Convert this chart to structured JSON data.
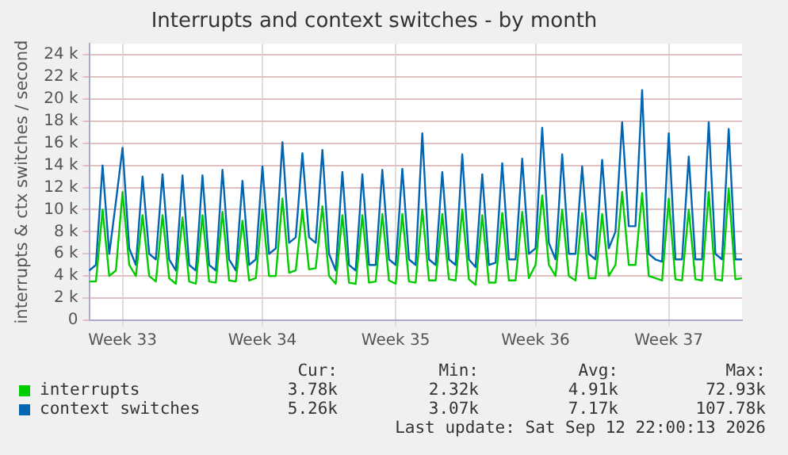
{
  "chart_data": {
    "type": "line",
    "title": "Interrupts and context switches - by month",
    "ylabel": "interrupts & ctx switches / second",
    "categories": [
      null,
      null,
      null,
      null,
      null,
      "Week 33",
      null,
      null,
      null,
      null,
      null,
      null,
      null,
      null,
      null,
      null,
      null,
      null,
      null,
      null,
      null,
      null,
      null,
      null,
      null,
      null,
      "Week 34",
      null,
      null,
      null,
      null,
      null,
      null,
      null,
      null,
      null,
      null,
      null,
      null,
      null,
      null,
      null,
      null,
      null,
      null,
      null,
      "Week 35",
      null,
      null,
      null,
      null,
      null,
      null,
      null,
      null,
      null,
      null,
      null,
      null,
      null,
      null,
      null,
      null,
      null,
      null,
      null,
      null,
      "Week 36",
      null,
      null,
      null,
      null,
      null,
      null,
      null,
      null,
      null,
      null,
      null,
      null,
      null,
      null,
      null,
      null,
      null,
      null,
      null,
      "Week 37",
      null,
      null,
      null,
      null,
      null,
      null,
      null,
      null,
      null,
      null,
      null
    ],
    "series": [
      {
        "name": "interrupts",
        "color": "#00cc00",
        "values": [
          3500,
          3500,
          10000,
          4000,
          4500,
          11600,
          5000,
          4000,
          9500,
          4000,
          3500,
          9500,
          3800,
          3300,
          9300,
          3500,
          3300,
          9500,
          3500,
          3400,
          9800,
          3600,
          3500,
          9000,
          3600,
          3800,
          10000,
          4000,
          4000,
          11000,
          4300,
          4500,
          10000,
          4600,
          4700,
          10300,
          4000,
          3300,
          9500,
          3400,
          3300,
          9500,
          3400,
          3500,
          9600,
          3600,
          3300,
          9600,
          3500,
          3400,
          10000,
          3600,
          3600,
          9600,
          3700,
          3600,
          10000,
          3700,
          3200,
          9500,
          3400,
          3400,
          9700,
          3600,
          3600,
          9800,
          3800,
          5000,
          11300,
          5000,
          4000,
          10000,
          4000,
          3600,
          9700,
          3800,
          3800,
          9600,
          4000,
          5000,
          11600,
          5000,
          5000,
          11500,
          4000,
          3800,
          3600,
          11000,
          3700,
          3600,
          10000,
          3700,
          3600,
          11600,
          3700,
          3600,
          11900,
          3700,
          3800
        ]
      },
      {
        "name": "context switches",
        "color": "#0066b3",
        "values": [
          4500,
          5000,
          14000,
          6000,
          10700,
          15600,
          6500,
          5000,
          13000,
          6000,
          5500,
          13200,
          5500,
          4500,
          13100,
          5000,
          4500,
          13100,
          5000,
          4500,
          13600,
          5500,
          4500,
          12600,
          5000,
          5500,
          13900,
          6000,
          6500,
          16100,
          7000,
          7500,
          15100,
          7500,
          7000,
          15400,
          6000,
          4500,
          13400,
          5000,
          4500,
          13200,
          5000,
          5000,
          13600,
          5500,
          5000,
          13700,
          5500,
          5000,
          16900,
          5500,
          5000,
          13400,
          5500,
          5000,
          15000,
          5500,
          4800,
          13200,
          5000,
          5200,
          14200,
          5500,
          5500,
          14600,
          6000,
          6500,
          17400,
          7000,
          5500,
          15000,
          6000,
          6000,
          13900,
          6000,
          5500,
          14500,
          6500,
          8000,
          17900,
          8500,
          8500,
          20800,
          6000,
          5500,
          5300,
          16900,
          5500,
          5500,
          14800,
          5500,
          5500,
          17900,
          6000,
          5500,
          17300,
          5500,
          5500
        ]
      }
    ],
    "ylim": [
      0,
      25000
    ],
    "yticks": [
      0,
      {
        "value": 2000,
        "label": "2 k"
      },
      {
        "value": 4000,
        "label": "4 k"
      },
      {
        "value": 6000,
        "label": "6 k"
      },
      {
        "value": 8000,
        "label": "8 k"
      },
      {
        "value": 10000,
        "label": "10 k"
      },
      {
        "value": 12000,
        "label": "12 k"
      },
      {
        "value": 14000,
        "label": "14 k"
      },
      {
        "value": 16000,
        "label": "16 k"
      },
      {
        "value": 18000,
        "label": "18 k"
      },
      {
        "value": 20000,
        "label": "20 k"
      },
      {
        "value": 22000,
        "label": "22 k"
      },
      {
        "value": 24000,
        "label": "24 k"
      }
    ],
    "grid": true,
    "legend": "bottom",
    "marker": "none",
    "line_style": "solid",
    "annotations": [
      "Cur:",
      "Min:",
      "Avg:",
      "Max:",
      "3.78k",
      "2.32k",
      "4.91k",
      "72.93k",
      "5.26k",
      "3.07k",
      "7.17k",
      "107.78k",
      "Last update: Sat Sep 12 22:00:13 2026"
    ]
  }
}
